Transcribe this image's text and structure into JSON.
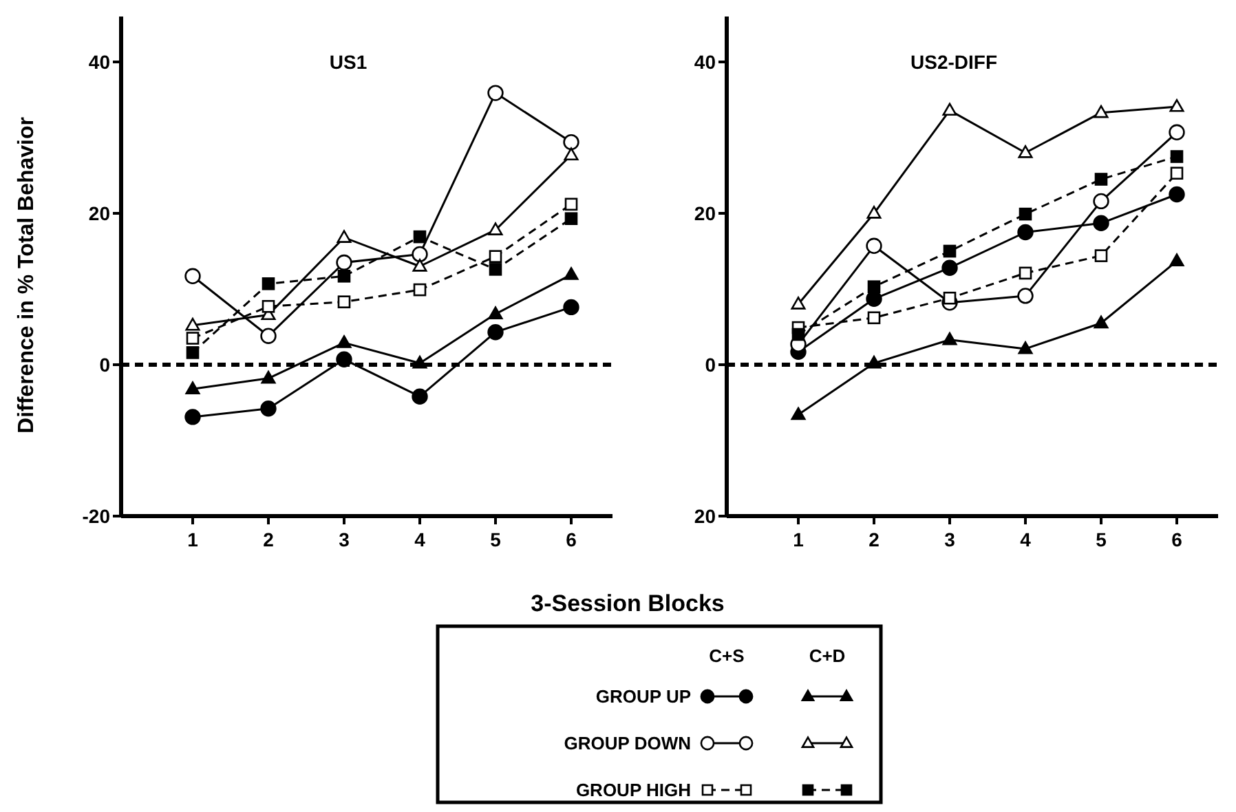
{
  "chart_data": [
    {
      "type": "line",
      "title": "US1",
      "xlabel": "3-Session Blocks",
      "ylabel": "Difference in % Total Behavior",
      "annotations": [
        "C+S",
        "C+D"
      ],
      "categories": [
        "1",
        "2",
        "3",
        "4",
        "5",
        "6"
      ],
      "ylim": [
        -20,
        46
      ],
      "yticks": [
        -20,
        0,
        20,
        40
      ],
      "legend": "bottom",
      "grid": false,
      "ref_lines": [
        {
          "axis": "y",
          "value": 0,
          "line_style": "dashed"
        }
      ],
      "series": [
        {
          "name": "GROUP UP",
          "color": "#000000",
          "marker": "circle",
          "line_style": "solid",
          "values": [
            -6.9,
            -5.8,
            0.7,
            -4.2,
            4.3,
            7.6
          ]
        },
        {
          "color": "#000000",
          "marker": "triangle",
          "line_style": "solid",
          "values": [
            -3.2,
            -1.8,
            2.9,
            0.2,
            6.7,
            11.9
          ]
        },
        {
          "name": "GROUP DOWN",
          "color": "#000000",
          "marker": "circle-open",
          "line_style": "solid",
          "values": [
            11.7,
            3.8,
            13.5,
            14.6,
            35.9,
            29.4
          ]
        },
        {
          "color": "#000000",
          "marker": "triangle-open",
          "line_style": "solid",
          "values": [
            5.2,
            6.6,
            16.8,
            13,
            17.8,
            27.7
          ]
        },
        {
          "name": "GROUP HIGH",
          "color": "#000000",
          "marker": "square-open",
          "line_style": "dashed",
          "values": [
            3.5,
            7.7,
            8.3,
            9.9,
            14.3,
            21.2
          ]
        },
        {
          "color": "#000000",
          "marker": "square",
          "line_style": "dashed",
          "values": [
            1.6,
            10.7,
            11.7,
            16.9,
            12.6,
            19.3
          ]
        }
      ]
    },
    {
      "type": "line",
      "title": "US2-DIFF",
      "categories": [
        "1",
        "2",
        "3",
        "4",
        "5",
        "6"
      ],
      "ylim": [
        -20,
        46
      ],
      "yticks": [
        {
          "value": -20,
          "label": "20"
        },
        0,
        20,
        40
      ],
      "grid": false,
      "ref_lines": [
        {
          "axis": "y",
          "value": 0,
          "line_style": "dashed"
        }
      ],
      "series": [
        {
          "color": "#000000",
          "marker": "circle",
          "line_style": "solid",
          "values": [
            1.7,
            8.7,
            12.8,
            17.5,
            18.7,
            22.5
          ]
        },
        {
          "color": "#000000",
          "marker": "triangle",
          "line_style": "solid",
          "values": [
            -6.6,
            0.2,
            3.3,
            2.1,
            5.5,
            13.7
          ]
        },
        {
          "color": "#000000",
          "marker": "circle-open",
          "line_style": "solid",
          "values": [
            2.7,
            15.7,
            8.2,
            9.1,
            21.6,
            30.7
          ]
        },
        {
          "color": "#000000",
          "marker": "triangle-open",
          "line_style": "solid",
          "values": [
            8,
            20,
            33.6,
            28,
            33.3,
            34.1
          ]
        },
        {
          "color": "#000000",
          "marker": "square-open",
          "line_style": "dashed",
          "values": [
            4.9,
            6.2,
            8.8,
            12.1,
            14.4,
            25.3
          ]
        },
        {
          "color": "#000000",
          "marker": "square",
          "line_style": "dashed",
          "values": [
            4,
            10.3,
            15,
            19.9,
            24.5,
            27.5
          ]
        }
      ]
    }
  ]
}
